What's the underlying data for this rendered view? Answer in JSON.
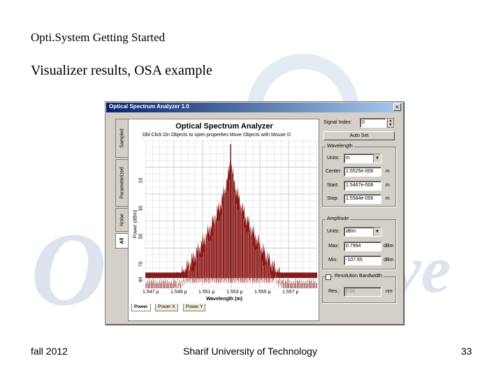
{
  "slide": {
    "header": "Opti.System Getting Started",
    "title": "Visualizer results, OSA example",
    "footer_left": "fall 2012",
    "footer_center": "Sharif University of Technology",
    "footer_right": "33",
    "watermark_left": "O",
    "watermark_right": "ve"
  },
  "window": {
    "title": "Optical Spectrum Analyzer 1.0",
    "close_glyph": "×",
    "side_tabs": [
      "Sampled",
      "Parameterized",
      "Noise",
      "All"
    ],
    "plot_title": "Optical Spectrum Analyzer",
    "plot_hint": "Dbl Click On Objects to open properties  Move Objects with Mouse D",
    "bottom_tabs": [
      "Power",
      "Power X",
      "Power Y"
    ]
  },
  "chart_data": {
    "type": "line",
    "ylabel": "Power (dBm)",
    "xlabel": "Wavelength (m)",
    "y_ticks": [
      "10",
      "30",
      "50",
      "70",
      "90"
    ],
    "x_ticks": [
      "1.547 μ",
      "1.549 μ",
      "1.551 μ",
      "1.553 μ",
      "1.555 μ",
      "1.557 μ"
    ],
    "x_range": [
      1.5467,
      1.5584
    ],
    "y_range": [
      -107.55,
      0.7994
    ],
    "center": 1.5525,
    "grid": true,
    "series_color": "#8b1a1a"
  },
  "panel": {
    "signal_index_label": "Signal Index:",
    "signal_index_value": "0",
    "autoset_label": "Auto Set",
    "wavelength": {
      "title": "Wavelength",
      "units_label": "Units:",
      "units_value": "m",
      "center_label": "Center:",
      "center_value": "1.5525e-006",
      "center_unit": "m",
      "start_label": "Start:",
      "start_value": "1.5467e-006",
      "start_unit": "m",
      "stop_label": "Stop:",
      "stop_value": "1.5584e-006",
      "stop_unit": "m"
    },
    "amplitude": {
      "title": "Amplitude",
      "units_label": "Units:",
      "units_value": "dBm",
      "max_label": "Max:",
      "max_value": "0.7994",
      "max_unit": "dBm",
      "min_label": "Min:",
      "min_value": "-107.55",
      "min_unit": "dBm"
    },
    "resolution": {
      "checkbox_label": "Resolution Bandwidth",
      "res_label": "Res.:",
      "res_value": "0.01",
      "res_unit": "nm"
    }
  }
}
